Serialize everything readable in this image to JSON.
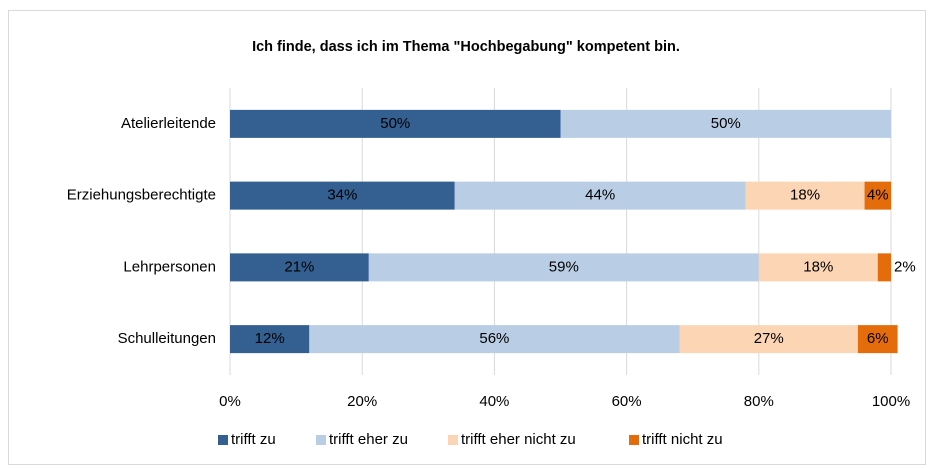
{
  "chart_data": {
    "type": "stacked-barh",
    "title": "Ich finde, dass ich im Thema \"Hochbegabung\" kompetent bin.",
    "categories": [
      "Atelierleitende",
      "Erziehungsberechtigte",
      "Lehrpersonen",
      "Schulleitungen"
    ],
    "series": [
      {
        "name": "trifft zu",
        "color": "#335f91",
        "values": [
          50,
          34,
          21,
          12
        ],
        "value_labels": [
          "50%",
          "34%",
          "21%",
          "12%"
        ]
      },
      {
        "name": "trifft eher zu",
        "color": "#b9cde5",
        "values": [
          50,
          44,
          59,
          56
        ],
        "value_labels": [
          "50%",
          "44%",
          "59%",
          "56%"
        ]
      },
      {
        "name": "trifft eher nicht zu",
        "color": "#fcd5b5",
        "values": [
          null,
          18,
          18,
          27
        ],
        "value_labels": [
          null,
          "18%",
          "18%",
          "27%"
        ]
      },
      {
        "name": "trifft nicht zu",
        "color": "#e46c0a",
        "values": [
          null,
          4,
          2,
          6
        ],
        "value_labels": [
          null,
          "4%",
          "2%",
          "6%"
        ]
      }
    ],
    "xlim": [
      0,
      100
    ],
    "xticks": [
      {
        "value": 0,
        "label": "0%"
      },
      {
        "value": 20,
        "label": "20%"
      },
      {
        "value": 40,
        "label": "40%"
      },
      {
        "value": 60,
        "label": "60%"
      },
      {
        "value": 80,
        "label": "80%"
      },
      {
        "value": 100,
        "label": "100%"
      }
    ],
    "grid": true,
    "legend": "bottom"
  }
}
